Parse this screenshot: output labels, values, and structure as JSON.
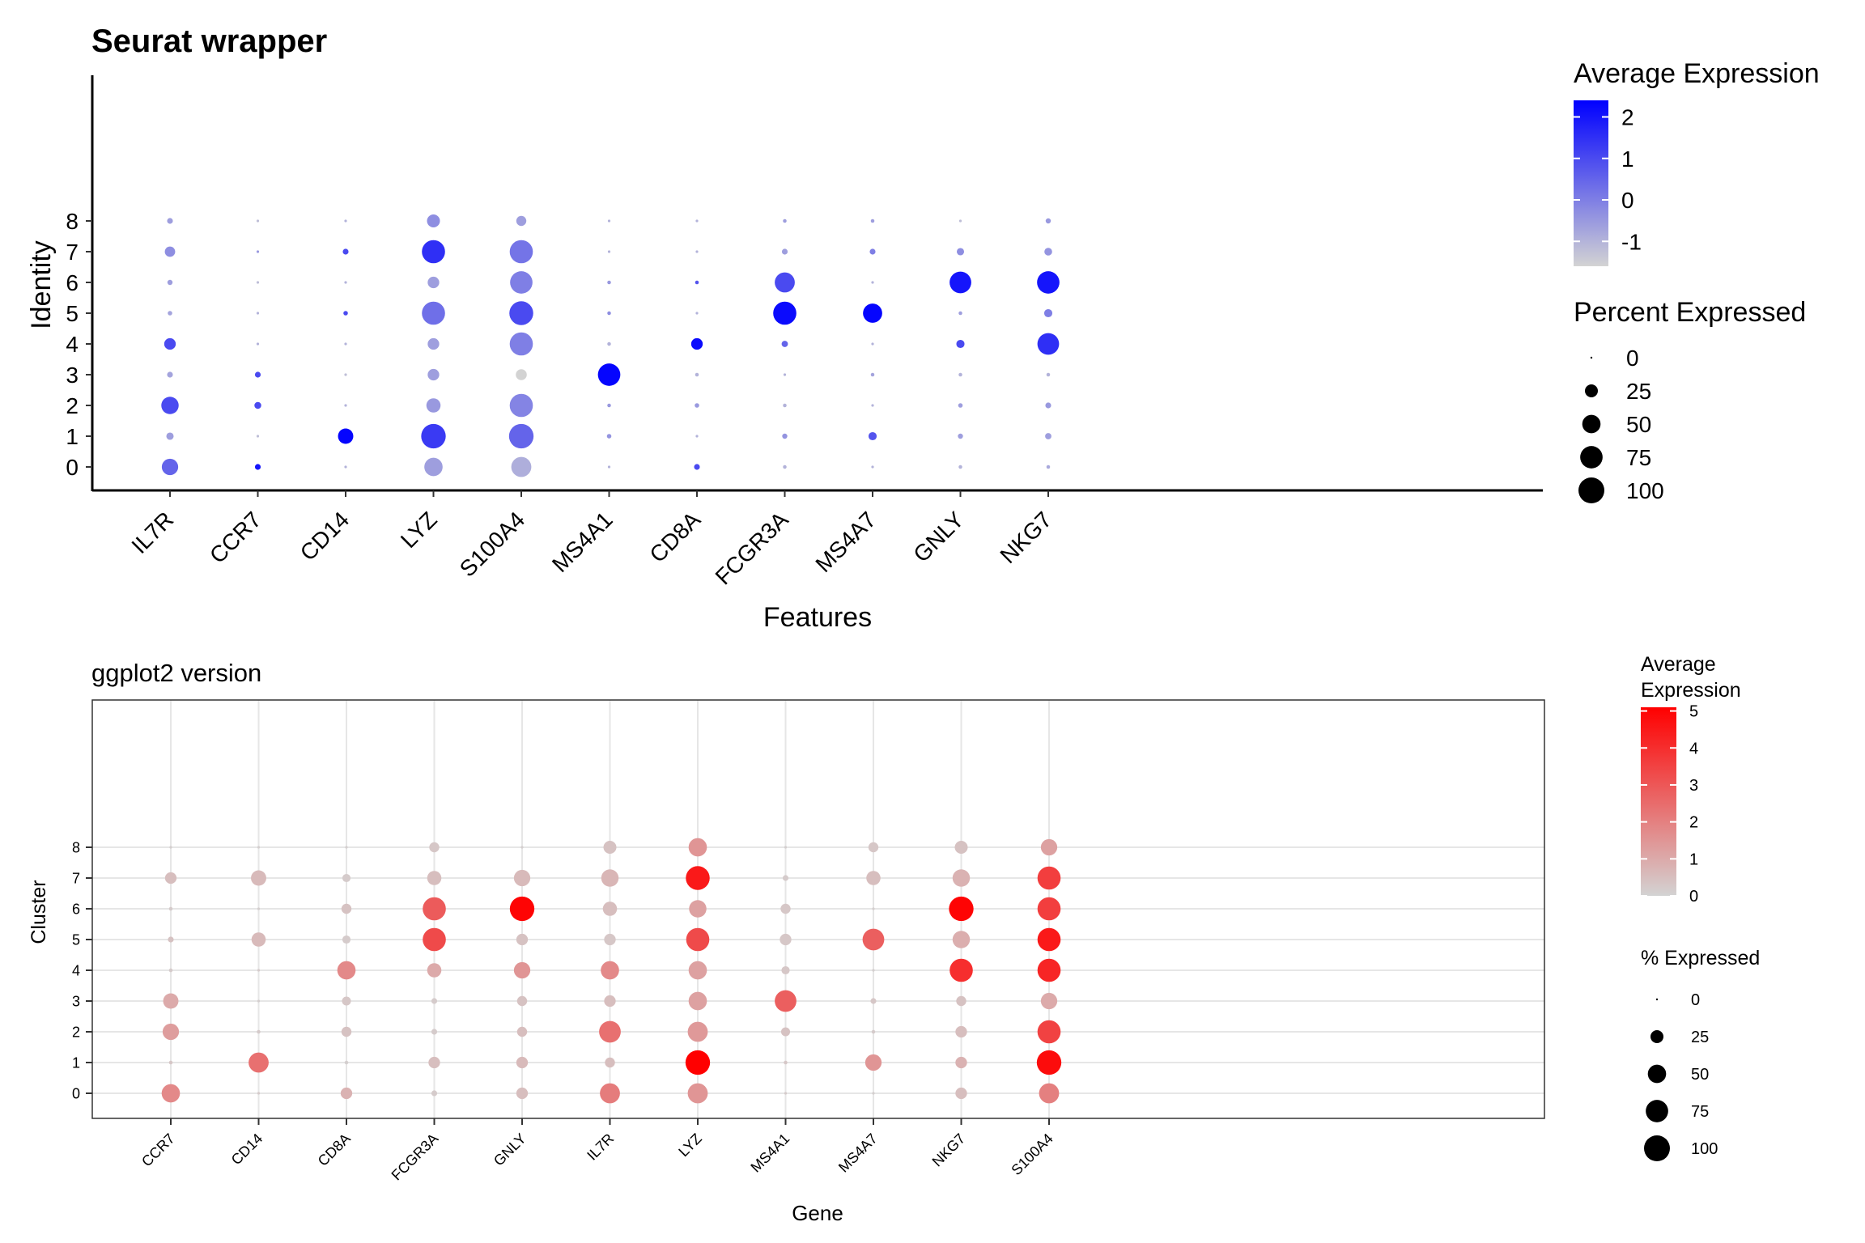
{
  "chart_data": [
    {
      "type": "scatter",
      "subtype": "dotplot",
      "title": "Seurat wrapper",
      "xlabel": "Features",
      "ylabel": "Identity",
      "categories_x": [
        "IL7R",
        "CCR7",
        "CD14",
        "LYZ",
        "S100A4",
        "MS4A1",
        "CD8A",
        "FCGR3A",
        "MS4A7",
        "GNLY",
        "NKG7"
      ],
      "categories_y": [
        "0",
        "1",
        "2",
        "3",
        "4",
        "5",
        "6",
        "7",
        "8"
      ],
      "grid": false,
      "color_legend": {
        "title": "Average Expression",
        "ticks": [
          "2",
          "1",
          "0",
          "-1"
        ],
        "tick_values": [
          2,
          1,
          0,
          -1
        ],
        "range": [
          -1.6,
          2.4
        ],
        "low_color": "#d3d3d3",
        "high_color": "#0000ff"
      },
      "size_legend": {
        "title": "Percent Expressed",
        "ticks": [
          "0",
          "25",
          "50",
          "75",
          "100"
        ],
        "tick_values": [
          0,
          25,
          50,
          75,
          100
        ]
      },
      "pct": [
        [
          40,
          5,
          1,
          50,
          60,
          1,
          5,
          2,
          1,
          2,
          2
        ],
        [
          8,
          1,
          35,
          90,
          90,
          3,
          1,
          4,
          10,
          4,
          6
        ],
        [
          45,
          7,
          1,
          30,
          80,
          2,
          3,
          2,
          1,
          3,
          5
        ],
        [
          5,
          5,
          1,
          20,
          18,
          75,
          2,
          1,
          2,
          2,
          2
        ],
        [
          20,
          1,
          1,
          20,
          80,
          2,
          20,
          6,
          1,
          10,
          70
        ],
        [
          3,
          1,
          3,
          80,
          85,
          2,
          1,
          80,
          55,
          2,
          10
        ],
        [
          4,
          1,
          1,
          20,
          75,
          2,
          2,
          60,
          1,
          70,
          75
        ],
        [
          16,
          1,
          5,
          80,
          80,
          1,
          1,
          5,
          5,
          8,
          9
        ],
        [
          5,
          1,
          1,
          25,
          15,
          1,
          1,
          2,
          2,
          1,
          4
        ]
      ],
      "avg": [
        [
          0.5,
          2.0,
          -1.0,
          -0.6,
          -0.9,
          -1.0,
          1.0,
          -1.0,
          -1.0,
          -1.0,
          -0.8
        ],
        [
          -0.6,
          -1.2,
          2.3,
          1.3,
          0.5,
          -0.4,
          -1.0,
          -0.4,
          0.8,
          -0.6,
          -0.6
        ],
        [
          1.0,
          1.0,
          -1.0,
          -0.5,
          -0.1,
          -0.5,
          -0.5,
          -1.0,
          -1.0,
          -0.6,
          -0.5
        ],
        [
          -0.7,
          1.0,
          -1.2,
          -0.6,
          -1.6,
          2.3,
          -1.0,
          -1.0,
          -0.7,
          -1.0,
          -1.0
        ],
        [
          1.0,
          -1.0,
          -1.0,
          -0.6,
          0.0,
          -1.0,
          2.2,
          0.5,
          -1.0,
          1.0,
          1.5
        ],
        [
          -0.7,
          -1.0,
          1.0,
          0.3,
          1.0,
          -0.3,
          -1.0,
          2.2,
          2.3,
          -0.6,
          0.0
        ],
        [
          -0.6,
          -1.2,
          -1.0,
          -0.6,
          0.0,
          -0.5,
          0.8,
          1.0,
          -1.0,
          2.0,
          2.0
        ],
        [
          -0.3,
          -0.5,
          1.0,
          1.5,
          0.2,
          -1.0,
          -1.0,
          -0.6,
          0.0,
          -0.3,
          -0.4
        ],
        [
          -0.6,
          -1.2,
          -1.0,
          -0.3,
          -0.6,
          -1.0,
          -1.0,
          -0.6,
          -0.6,
          -1.2,
          -0.5
        ]
      ]
    },
    {
      "type": "scatter",
      "subtype": "dotplot",
      "title": "ggplot2 version",
      "xlabel": "Gene",
      "ylabel": "Cluster",
      "categories_x": [
        "CCR7",
        "CD14",
        "CD8A",
        "FCGR3A",
        "GNLY",
        "IL7R",
        "LYZ",
        "MS4A1",
        "MS4A7",
        "NKG7",
        "S100A4"
      ],
      "categories_y": [
        "0",
        "1",
        "2",
        "3",
        "4",
        "5",
        "6",
        "7",
        "8"
      ],
      "grid": true,
      "color_legend": {
        "title_lines": [
          "Average",
          "Expression"
        ],
        "ticks": [
          "5",
          "4",
          "3",
          "2",
          "1",
          "0"
        ],
        "tick_values": [
          5,
          4,
          3,
          2,
          1,
          0
        ],
        "range": [
          0,
          5.1
        ],
        "low_color": "#d3d3d3",
        "high_color": "#ff0000"
      },
      "size_legend": {
        "title": "% Expressed",
        "ticks": [
          "0",
          "25",
          "50",
          "75",
          "100"
        ],
        "tick_values": [
          0,
          25,
          50,
          75,
          100
        ]
      },
      "pct": [
        [
          50,
          1,
          20,
          5,
          20,
          60,
          60,
          1,
          1,
          20,
          60
        ],
        [
          2,
          60,
          2,
          20,
          20,
          15,
          90,
          2,
          40,
          20,
          90
        ],
        [
          40,
          2,
          15,
          5,
          15,
          70,
          60,
          12,
          2,
          20,
          80
        ],
        [
          35,
          1,
          12,
          5,
          15,
          20,
          50,
          70,
          5,
          15,
          40
        ],
        [
          2,
          1,
          50,
          30,
          40,
          50,
          50,
          10,
          1,
          80,
          80
        ],
        [
          5,
          30,
          10,
          80,
          20,
          20,
          80,
          20,
          70,
          45,
          80
        ],
        [
          2,
          1,
          15,
          80,
          90,
          30,
          45,
          15,
          1,
          90,
          80
        ],
        [
          20,
          35,
          10,
          30,
          40,
          45,
          85,
          5,
          30,
          45,
          80
        ],
        [
          1,
          1,
          1,
          15,
          1,
          25,
          50,
          1,
          15,
          25,
          40
        ]
      ],
      "avg": [
        [
          1.8,
          0.2,
          0.8,
          0.2,
          0.5,
          2.1,
          1.5,
          0.2,
          0.1,
          0.5,
          2.0
        ],
        [
          0.3,
          2.4,
          0.1,
          0.5,
          0.6,
          0.5,
          5.2,
          0.3,
          1.5,
          0.8,
          4.8
        ],
        [
          1.3,
          0.2,
          0.4,
          0.2,
          0.5,
          2.4,
          1.4,
          0.4,
          0.2,
          0.5,
          3.5
        ],
        [
          1.0,
          0.1,
          0.3,
          0.2,
          0.4,
          0.5,
          1.2,
          2.8,
          0.3,
          0.4,
          1.0
        ],
        [
          0.2,
          0.2,
          1.8,
          1.0,
          1.5,
          1.8,
          1.2,
          0.3,
          0.1,
          4.0,
          4.2
        ],
        [
          0.4,
          0.6,
          0.2,
          3.3,
          0.4,
          0.3,
          3.3,
          0.3,
          2.8,
          0.9,
          4.5
        ],
        [
          0.2,
          0.1,
          0.4,
          2.9,
          5.0,
          0.5,
          1.2,
          0.3,
          0.1,
          5.0,
          3.6
        ],
        [
          0.5,
          0.6,
          0.2,
          0.5,
          0.6,
          0.7,
          4.5,
          0.2,
          0.5,
          0.8,
          3.6
        ],
        [
          0.1,
          0.1,
          0.1,
          0.3,
          0.1,
          0.4,
          1.5,
          0.1,
          0.3,
          0.4,
          1.2
        ]
      ]
    }
  ]
}
